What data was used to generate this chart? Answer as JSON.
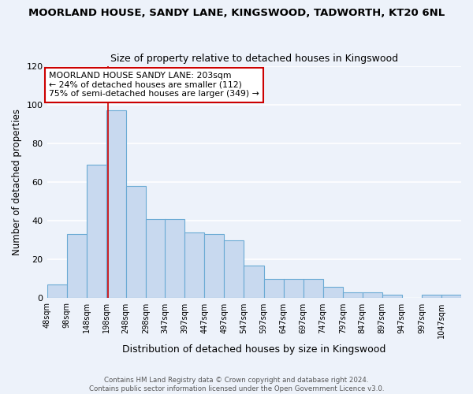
{
  "title1": "MOORLAND HOUSE, SANDY LANE, KINGSWOOD, TADWORTH, KT20 6NL",
  "title2": "Size of property relative to detached houses in Kingswood",
  "xlabel": "Distribution of detached houses by size in Kingswood",
  "ylabel": "Number of detached properties",
  "bar_labels": [
    "48sqm",
    "98sqm",
    "148sqm",
    "198sqm",
    "248sqm",
    "298sqm",
    "347sqm",
    "397sqm",
    "447sqm",
    "497sqm",
    "547sqm",
    "597sqm",
    "647sqm",
    "697sqm",
    "747sqm",
    "797sqm",
    "847sqm",
    "897sqm",
    "947sqm",
    "997sqm",
    "1047sqm"
  ],
  "bar_values": [
    7,
    33,
    69,
    97,
    58,
    41,
    41,
    34,
    33,
    30,
    17,
    10,
    10,
    10,
    6,
    3,
    3,
    2,
    0,
    2,
    2
  ],
  "bar_color": "#c8d9ef",
  "bar_edge_color": "#6aaad4",
  "vline_x": 203,
  "vline_color": "#cc0000",
  "annotation_title": "MOORLAND HOUSE SANDY LANE: 203sqm",
  "annotation_line1": "← 24% of detached houses are smaller (112)",
  "annotation_line2": "75% of semi-detached houses are larger (349) →",
  "ylim": [
    0,
    120
  ],
  "yticks": [
    0,
    20,
    40,
    60,
    80,
    100,
    120
  ],
  "footer1": "Contains HM Land Registry data © Crown copyright and database right 2024.",
  "footer2": "Contains public sector information licensed under the Open Government Licence v3.0.",
  "bg_color": "#edf2fa",
  "grid_color": "#d0d8e8"
}
